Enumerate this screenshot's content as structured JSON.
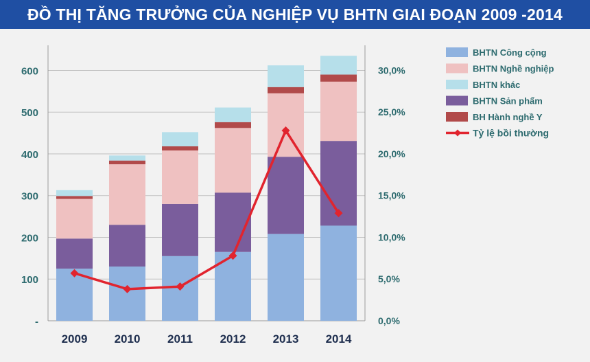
{
  "title": "ĐỒ THỊ TĂNG TRƯỞNG CỦA NGHIỆP VỤ BHTN GIAI ĐOẠN 2009 -2014",
  "chart_data": {
    "type": "bar",
    "stacked": true,
    "categories": [
      "2009",
      "2010",
      "2011",
      "2012",
      "2013",
      "2014"
    ],
    "series": [
      {
        "name": "BHTN Công cộng",
        "color": "#8fb2df",
        "values": [
          125,
          130,
          155,
          165,
          208,
          228
        ]
      },
      {
        "name": "BHTN Sản phẩm",
        "color": "#7a5d9c",
        "values": [
          72,
          100,
          125,
          142,
          185,
          203
        ]
      },
      {
        "name": "BHTN Nghề nghiệp",
        "color": "#efc1c1",
        "values": [
          95,
          145,
          128,
          155,
          152,
          142
        ]
      },
      {
        "name": "BH Hành nghề Y",
        "color": "#b14a4a",
        "values": [
          7,
          9,
          10,
          14,
          15,
          17
        ]
      },
      {
        "name": "BHTN khác",
        "color": "#b6dfea",
        "values": [
          14,
          12,
          34,
          35,
          52,
          45
        ]
      }
    ],
    "line": {
      "name": "Tỷ lệ bồi thường",
      "color": "#e1242e",
      "axis": "right",
      "values": [
        5.7,
        3.8,
        4.1,
        7.8,
        22.8,
        12.9
      ]
    },
    "ylim": [
      0,
      660
    ],
    "y2lim": [
      0,
      33
    ],
    "yticks": [
      "-",
      "100",
      "200",
      "300",
      "400",
      "500",
      "600"
    ],
    "y2ticks": [
      "0,0%",
      "5,0%",
      "10,0%",
      "15,0%",
      "20,0%",
      "25,0%",
      "30,0%"
    ],
    "legend": [
      "BHTN Công cộng",
      "BHTN Nghề nghiệp",
      "BHTN khác",
      "BHTN Sản phẩm",
      "BH Hành nghề Y",
      "Tỷ lệ bồi thường"
    ],
    "legend_position": "right",
    "grid": true
  }
}
